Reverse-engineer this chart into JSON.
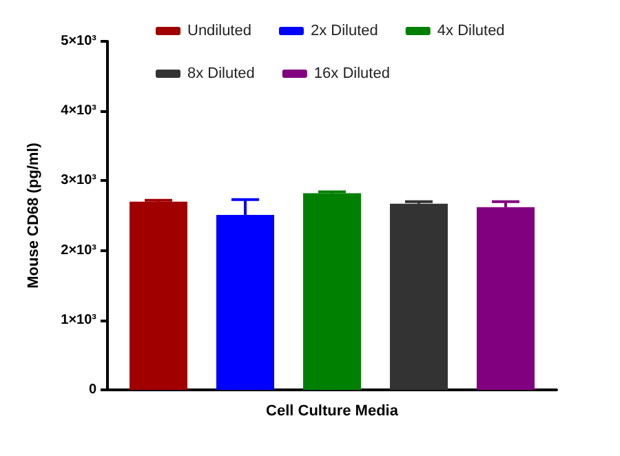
{
  "chart_data": {
    "type": "bar",
    "ylabel": "Mouse CD68 (pg/ml)",
    "categories": [
      "Cell Culture Media"
    ],
    "series": [
      {
        "name": "Undiluted",
        "color": "#a00000",
        "values": [
          2700
        ],
        "errors": [
          20
        ]
      },
      {
        "name": "2x Diluted",
        "color": "#0000ff",
        "values": [
          2510
        ],
        "errors": [
          220
        ]
      },
      {
        "name": "4x Diluted",
        "color": "#008000",
        "values": [
          2820
        ],
        "errors": [
          20
        ]
      },
      {
        "name": "8x Diluted",
        "color": "#333333",
        "values": [
          2670
        ],
        "errors": [
          30
        ]
      },
      {
        "name": "16x Diluted",
        "color": "#800080",
        "values": [
          2620
        ],
        "errors": [
          80
        ]
      }
    ],
    "ylim": [
      0,
      5000
    ],
    "yticks": [
      0,
      {
        "value": 1000,
        "label": "1×10³"
      },
      {
        "value": 2000,
        "label": "2×10³"
      },
      {
        "value": 3000,
        "label": "3×10³"
      },
      {
        "value": 4000,
        "label": "4×10³"
      },
      {
        "value": 5000,
        "label": "5×10³"
      }
    ],
    "grid": false,
    "legend": "top"
  }
}
